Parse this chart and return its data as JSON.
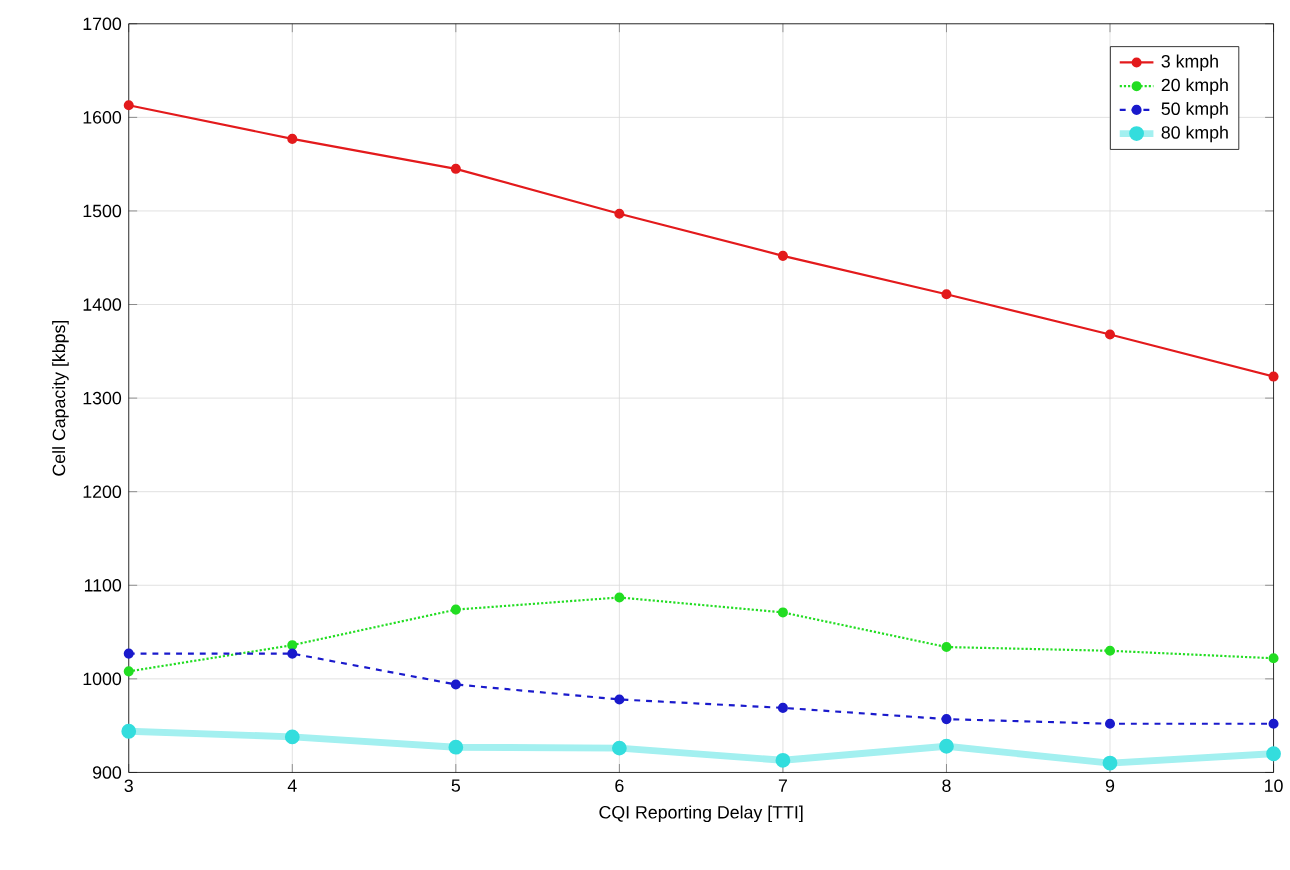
{
  "chart_data": {
    "type": "line",
    "xlabel": "CQI Reporting Delay [TTI]",
    "ylabel": "Cell Capacity [kbps]",
    "x": [
      3,
      4,
      5,
      6,
      7,
      8,
      9,
      10
    ],
    "xlim": [
      3,
      10
    ],
    "xticks": [
      3,
      4,
      5,
      6,
      7,
      8,
      9,
      10
    ],
    "ylim": [
      900,
      1700
    ],
    "yticks": [
      900,
      1000,
      1100,
      1200,
      1300,
      1400,
      1500,
      1600,
      1700
    ],
    "grid": true,
    "legend": "top right",
    "marker": "circle",
    "series": [
      {
        "name": "3 kmph",
        "color": "#e31a1c",
        "line_style": "solid",
        "values": [
          1613,
          1577,
          1545,
          1497,
          1452,
          1411,
          1368,
          1323
        ]
      },
      {
        "name": "20 kmph",
        "color": "#22dd22",
        "line_style": "dotted",
        "values": [
          1008,
          1036,
          1074,
          1087,
          1071,
          1034,
          1030,
          1022
        ]
      },
      {
        "name": "50 kmph",
        "color": "#1a1acc",
        "line_style": "dashed",
        "values": [
          1027,
          1027,
          994,
          978,
          969,
          957,
          952,
          952
        ]
      },
      {
        "name": "80 kmph",
        "color": "#33dddd",
        "line_style": "solid",
        "values": [
          944,
          938,
          927,
          926,
          913,
          928,
          910,
          920
        ]
      }
    ]
  }
}
